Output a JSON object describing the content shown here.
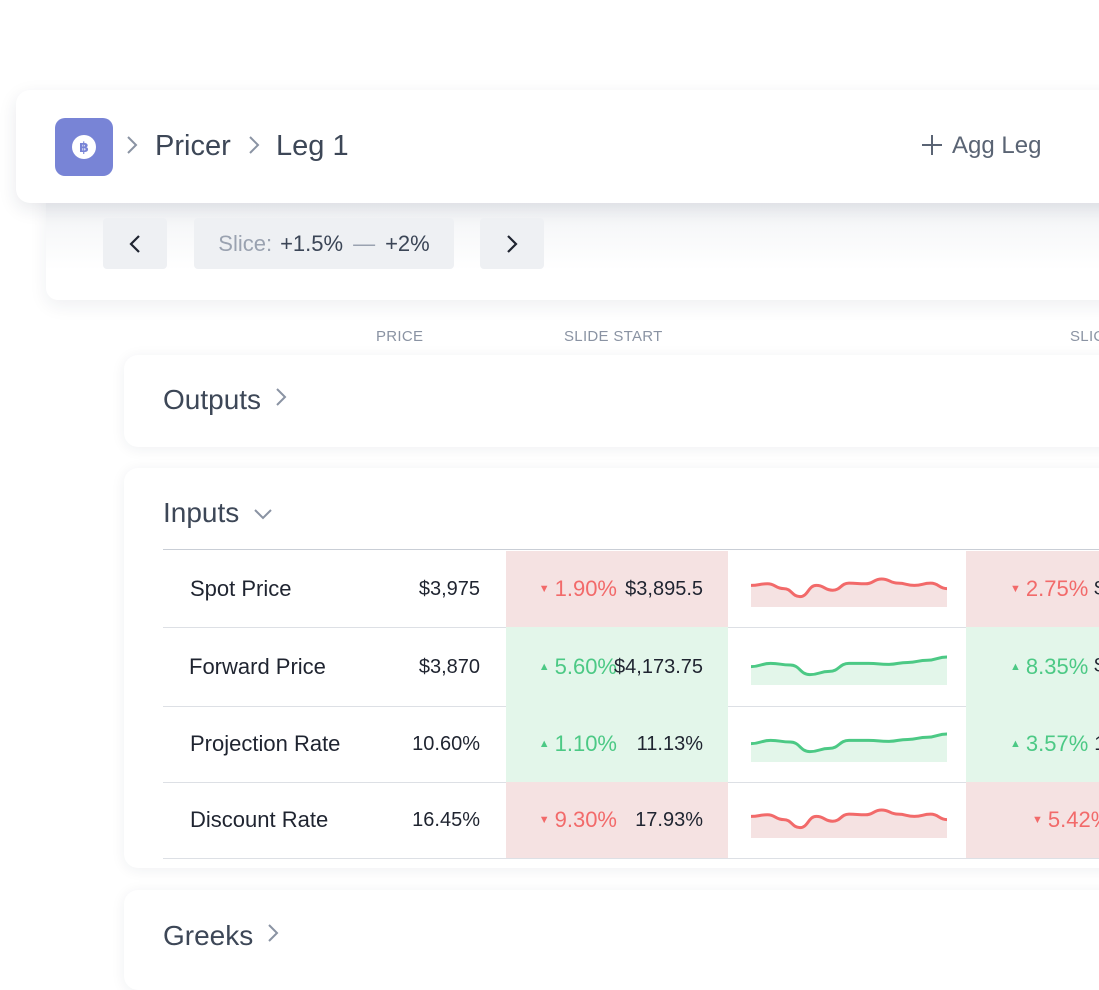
{
  "header": {
    "logo_symbol": "฿",
    "breadcrumb": [
      "Pricer",
      "Leg 1"
    ],
    "add_button_label": "Agg Leg",
    "add_button_icon": "plus-icon"
  },
  "slice": {
    "label": "Slice:",
    "from": "+1.5%",
    "separator": "—",
    "to": "+2%"
  },
  "columns": [
    "PRICE",
    "SLIDE START",
    "SLIC"
  ],
  "sections": {
    "outputs": "Outputs",
    "inputs": "Inputs",
    "greeks": "Greeks"
  },
  "colors": {
    "accent": "#7884d6",
    "up": "#4cc985",
    "down": "#f26a6a",
    "up_bg": "#e3f6ea",
    "down_bg": "#f5e2e2"
  },
  "rows": [
    {
      "label": "Spot Price",
      "price": "$3,975",
      "direction": "down",
      "change": "1.90%",
      "slide_start": "$3,895.5",
      "next_change": "2.75%",
      "next_value_partial": "$",
      "trend": [
        0.55,
        0.6,
        0.45,
        0.2,
        0.55,
        0.4,
        0.62,
        0.6,
        0.75,
        0.62,
        0.55,
        0.62,
        0.45
      ]
    },
    {
      "label": "Forward Price",
      "price": "$3,870",
      "direction": "up",
      "change": "5.60%",
      "slide_start": "$4,173.75",
      "next_change": "8.35%",
      "next_value_partial": "$",
      "trend": [
        0.45,
        0.55,
        0.5,
        0.2,
        0.3,
        0.55,
        0.55,
        0.52,
        0.58,
        0.65,
        0.75
      ]
    },
    {
      "label": "Projection Rate",
      "price": "10.60%",
      "direction": "up",
      "change": "1.10%",
      "slide_start": "11.13%",
      "next_change": "3.57%",
      "next_value_partial": "1",
      "trend": [
        0.45,
        0.55,
        0.5,
        0.2,
        0.3,
        0.55,
        0.55,
        0.52,
        0.58,
        0.65,
        0.75
      ]
    },
    {
      "label": "Discount Rate",
      "price": "16.45%",
      "direction": "down",
      "change": "9.30%",
      "slide_start": "17.93%",
      "next_change": "5.42%",
      "next_value_partial": "",
      "trend": [
        0.55,
        0.6,
        0.45,
        0.2,
        0.55,
        0.4,
        0.62,
        0.6,
        0.75,
        0.62,
        0.55,
        0.62,
        0.45
      ]
    }
  ]
}
